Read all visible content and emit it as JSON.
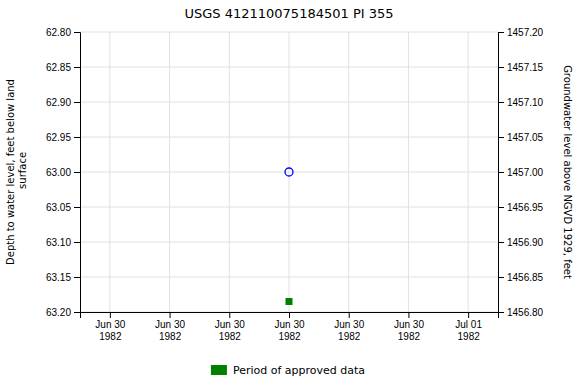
{
  "chart_data": {
    "type": "scatter",
    "title": "USGS 412110075184501 PI   355",
    "y_label": "Depth to water level, feet below land\n surface",
    "y2_label": "Groundwater level above NGVD 1929, feet",
    "categories": [
      "Jun 30\n1982",
      "Jun 30\n1982",
      "Jun 30\n1982",
      "Jun 30\n1982",
      "Jun 30\n1982",
      "Jun 30\n1982",
      "Jul 01\n1982"
    ],
    "series": [
      {
        "color": "#0000FF",
        "marker": "circle-open",
        "values": [
          null,
          null,
          null,
          63.0,
          null,
          null,
          null
        ]
      },
      {
        "name": "Period of approved data",
        "color": "#008000",
        "marker": "square",
        "values": [
          null,
          null,
          null,
          63.185,
          null,
          null,
          null
        ]
      }
    ],
    "ylim": [
      63.2,
      62.8
    ],
    "yticks": [
      {
        "value": 62.8,
        "label": "62.80"
      },
      {
        "value": 62.85,
        "label": "62.85"
      },
      {
        "value": 62.9,
        "label": "62.90"
      },
      {
        "value": 62.95,
        "label": "62.95"
      },
      {
        "value": 63.0,
        "label": "63.00"
      },
      {
        "value": 63.05,
        "label": "63.05"
      },
      {
        "value": 63.1,
        "label": "63.10"
      },
      {
        "value": 63.15,
        "label": "63.15"
      },
      {
        "value": 63.2,
        "label": "63.20"
      }
    ],
    "y2lim": [
      1456.8,
      1457.2
    ],
    "y2ticks": [
      {
        "value": 1457.2,
        "label": "1457.20"
      },
      {
        "value": 1457.15,
        "label": "1457.15"
      },
      {
        "value": 1457.1,
        "label": "1457.10"
      },
      {
        "value": 1457.05,
        "label": "1457.05"
      },
      {
        "value": 1457.0,
        "label": "1457.00"
      },
      {
        "value": 1456.95,
        "label": "1456.95"
      },
      {
        "value": 1456.9,
        "label": "1456.90"
      },
      {
        "value": 1456.85,
        "label": "1456.85"
      },
      {
        "value": 1456.8,
        "label": "1456.80"
      }
    ],
    "grid": true,
    "legend": "bottom"
  }
}
